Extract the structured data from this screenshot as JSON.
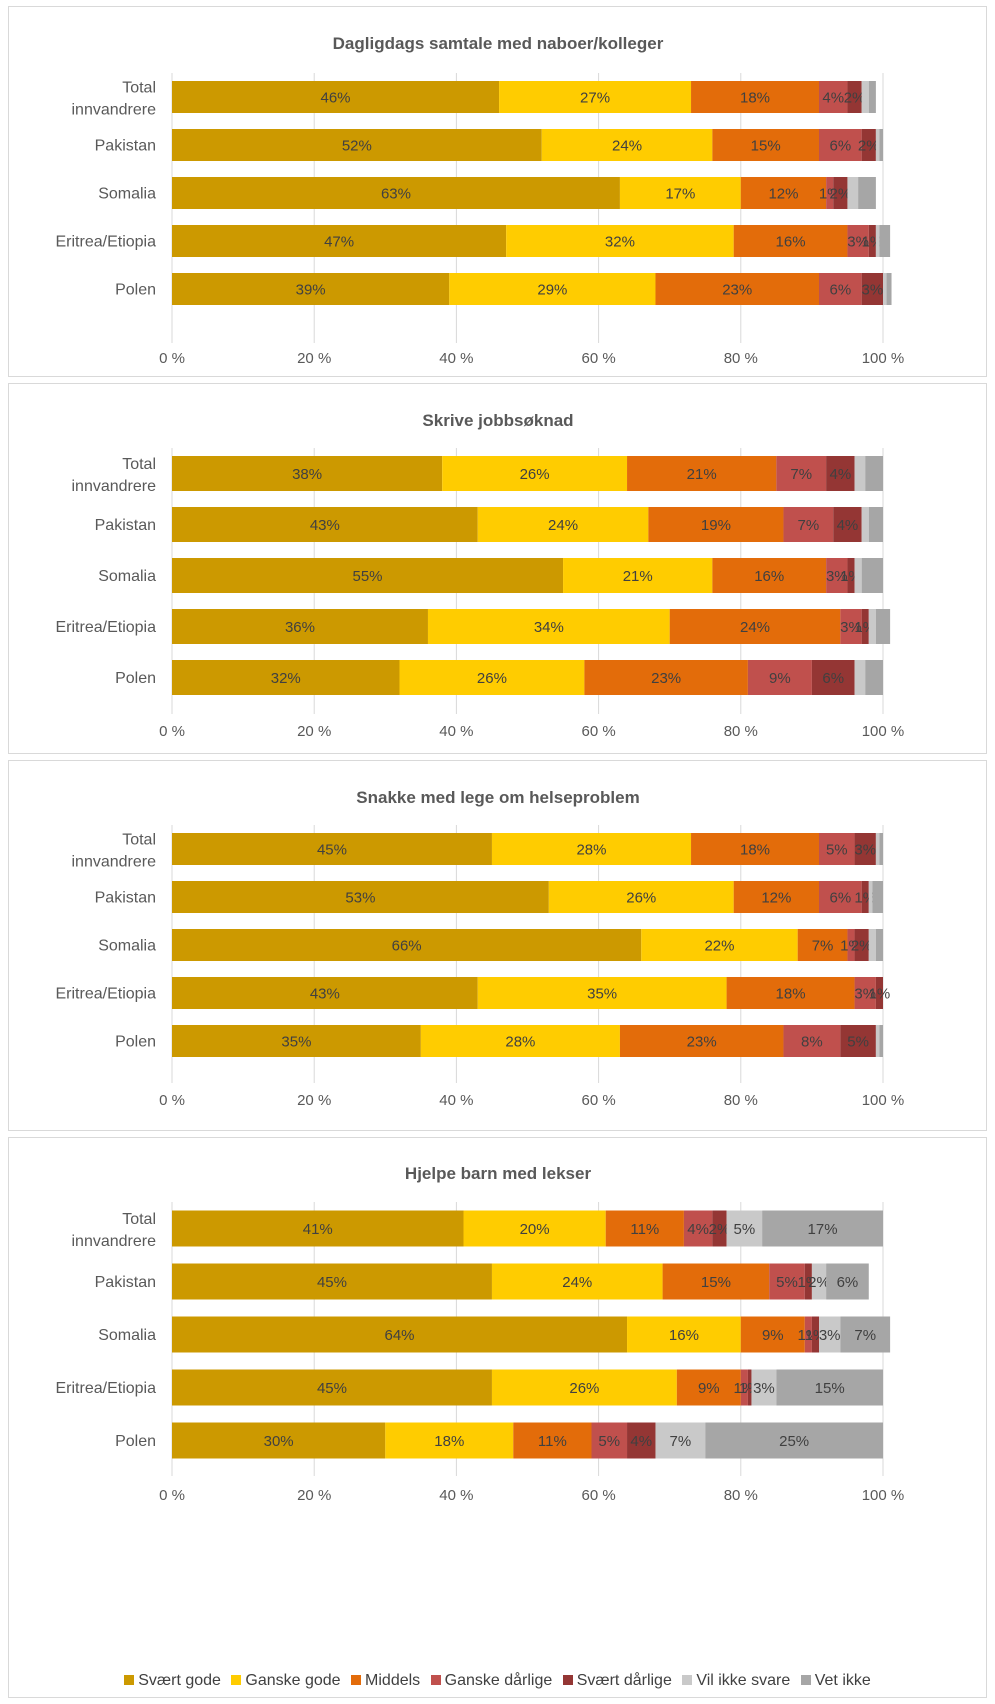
{
  "colors": [
    "#cc9900",
    "#ffcc00",
    "#e36c0a",
    "#c0504d",
    "#943634",
    "#c9c9c9",
    "#a6a6a6"
  ],
  "legend": [
    "Svært gode",
    "Ganske gode",
    "Middels",
    "Ganske dårlige",
    "Svært dårlige",
    "Vil ikke svare",
    "Vet ikke"
  ],
  "chart_data": [
    {
      "type": "bar",
      "orientation": "horizontal",
      "stacked": true,
      "title": "Dagligdags samtale med naboer/kolleger",
      "categories": [
        "Total\ninnvandrere",
        "Pakistan",
        "Somalia",
        "Eritrea/Etiopia",
        "Polen"
      ],
      "xlim": [
        0,
        100
      ],
      "ticks": [
        "0 %",
        "20 %",
        "40 %",
        "60 %",
        "80 %",
        "100 %"
      ],
      "series": [
        {
          "name": "Svært gode",
          "values": [
            46,
            52,
            63,
            47,
            39
          ],
          "labels": [
            "46%",
            "52%",
            "63%",
            "47%",
            "39%"
          ]
        },
        {
          "name": "Ganske gode",
          "values": [
            27,
            24,
            17,
            32,
            29
          ],
          "labels": [
            "27%",
            "24%",
            "17%",
            "32%",
            "29%"
          ]
        },
        {
          "name": "Middels",
          "values": [
            18,
            15,
            12,
            16,
            23
          ],
          "labels": [
            "18%",
            "15%",
            "12%",
            "16%",
            "23%"
          ]
        },
        {
          "name": "Ganske dårlige",
          "values": [
            4,
            6,
            1,
            3,
            6
          ],
          "labels": [
            "4%",
            "6%",
            "1%",
            "3%",
            "6%"
          ]
        },
        {
          "name": "Svært dårlige",
          "values": [
            2,
            2,
            2,
            1,
            3
          ],
          "labels": [
            "2%",
            "2%",
            "2%",
            "1%",
            "3%"
          ]
        },
        {
          "name": "Vil ikke svare",
          "values": [
            1,
            0.5,
            1.5,
            0.5,
            0.5
          ],
          "labels": [
            "",
            "",
            "",
            "",
            ""
          ]
        },
        {
          "name": "Vet ikke",
          "values": [
            1,
            0.5,
            2.5,
            1.5,
            0.7
          ],
          "labels": [
            "",
            "",
            "",
            "",
            ""
          ]
        }
      ]
    },
    {
      "type": "bar",
      "orientation": "horizontal",
      "stacked": true,
      "title": "Skrive jobbsøknad",
      "categories": [
        "Total\ninnvandrere",
        "Pakistan",
        "Somalia",
        "Eritrea/Etiopia",
        "Polen"
      ],
      "xlim": [
        0,
        100
      ],
      "ticks": [
        "0 %",
        "20 %",
        "40 %",
        "60 %",
        "80 %",
        "100 %"
      ],
      "series": [
        {
          "name": "Svært gode",
          "values": [
            38,
            43,
            55,
            36,
            32
          ],
          "labels": [
            "38%",
            "43%",
            "55%",
            "36%",
            "32%"
          ]
        },
        {
          "name": "Ganske gode",
          "values": [
            26,
            24,
            21,
            34,
            26
          ],
          "labels": [
            "26%",
            "24%",
            "21%",
            "34%",
            "26%"
          ]
        },
        {
          "name": "Middels",
          "values": [
            21,
            19,
            16,
            24,
            23
          ],
          "labels": [
            "21%",
            "19%",
            "16%",
            "24%",
            "23%"
          ]
        },
        {
          "name": "Ganske dårlige",
          "values": [
            7,
            7,
            3,
            3,
            9
          ],
          "labels": [
            "7%",
            "7%",
            "3%",
            "3%",
            "9%"
          ]
        },
        {
          "name": "Svært dårlige",
          "values": [
            4,
            4,
            1,
            1,
            6
          ],
          "labels": [
            "4%",
            "4%",
            "1%",
            "1%",
            "6%"
          ]
        },
        {
          "name": "Vil ikke svare",
          "values": [
            1.5,
            1,
            1,
            1,
            1.5
          ],
          "labels": [
            "",
            "",
            "",
            "",
            ""
          ]
        },
        {
          "name": "Vet ikke",
          "values": [
            2.5,
            2,
            3,
            2,
            2.5
          ],
          "labels": [
            "",
            "",
            "",
            "",
            ""
          ]
        }
      ]
    },
    {
      "type": "bar",
      "orientation": "horizontal",
      "stacked": true,
      "title": "Snakke med lege om helseproblem",
      "categories": [
        "Total\ninnvandrere",
        "Pakistan",
        "Somalia",
        "Eritrea/Etiopia",
        "Polen"
      ],
      "xlim": [
        0,
        100
      ],
      "ticks": [
        "0 %",
        "20 %",
        "40 %",
        "60 %",
        "80 %",
        "100 %"
      ],
      "series": [
        {
          "name": "Svært gode",
          "values": [
            45,
            53,
            66,
            43,
            35
          ],
          "labels": [
            "45%",
            "53%",
            "66%",
            "43%",
            "35%"
          ]
        },
        {
          "name": "Ganske gode",
          "values": [
            28,
            26,
            22,
            35,
            28
          ],
          "labels": [
            "28%",
            "26%",
            "22%",
            "35%",
            "28%"
          ]
        },
        {
          "name": "Middels",
          "values": [
            18,
            12,
            7,
            18,
            23
          ],
          "labels": [
            "18%",
            "12%",
            "7%",
            "18%",
            "23%"
          ]
        },
        {
          "name": "Ganske dårlige",
          "values": [
            5,
            6,
            1,
            3,
            8
          ],
          "labels": [
            "5%",
            "6%",
            "1%",
            "3%",
            "8%"
          ]
        },
        {
          "name": "Svært dårlige",
          "values": [
            3,
            1,
            2,
            1,
            5
          ],
          "labels": [
            "3%",
            "1%",
            "2%",
            "1%",
            "5%"
          ]
        },
        {
          "name": "Vil ikke svare",
          "values": [
            0.5,
            0.5,
            1,
            0,
            0.5
          ],
          "labels": [
            "",
            "",
            "",
            "",
            ""
          ]
        },
        {
          "name": "Vet ikke",
          "values": [
            0.5,
            1.5,
            1,
            0,
            0.5
          ],
          "labels": [
            "",
            "",
            "",
            "",
            ""
          ]
        }
      ]
    },
    {
      "type": "bar",
      "orientation": "horizontal",
      "stacked": true,
      "title": "Hjelpe barn med lekser",
      "categories": [
        "Total\ninnvandrere",
        "Pakistan",
        "Somalia",
        "Eritrea/Etiopia",
        "Polen"
      ],
      "xlim": [
        0,
        100
      ],
      "ticks": [
        "0 %",
        "20 %",
        "40 %",
        "60 %",
        "80 %",
        "100 %"
      ],
      "series": [
        {
          "name": "Svært gode",
          "values": [
            41,
            45,
            64,
            45,
            30
          ],
          "labels": [
            "41%",
            "45%",
            "64%",
            "45%",
            "30%"
          ]
        },
        {
          "name": "Ganske gode",
          "values": [
            20,
            24,
            16,
            26,
            18
          ],
          "labels": [
            "20%",
            "24%",
            "16%",
            "26%",
            "18%"
          ]
        },
        {
          "name": "Middels",
          "values": [
            11,
            15,
            9,
            9,
            11
          ],
          "labels": [
            "11%",
            "15%",
            "9%",
            "9%",
            "11%"
          ]
        },
        {
          "name": "Ganske dårlige",
          "values": [
            4,
            5,
            1,
            1,
            5
          ],
          "labels": [
            "4%",
            "5%",
            "1%",
            "1%",
            "5%"
          ]
        },
        {
          "name": "Svært dårlige",
          "values": [
            2,
            1,
            1,
            0.5,
            4
          ],
          "labels": [
            "2%",
            "1%",
            "1%",
            "1%",
            "4%"
          ]
        },
        {
          "name": "Vil ikke svare",
          "values": [
            5,
            2,
            3,
            3.5,
            7
          ],
          "labels": [
            "5%",
            "2%",
            "3%",
            "3%",
            "7%"
          ]
        },
        {
          "name": "Vet ikke",
          "values": [
            17,
            6,
            7,
            15,
            25
          ],
          "labels": [
            "17%",
            "6%",
            "7%",
            "15%",
            "25%"
          ]
        }
      ]
    }
  ]
}
